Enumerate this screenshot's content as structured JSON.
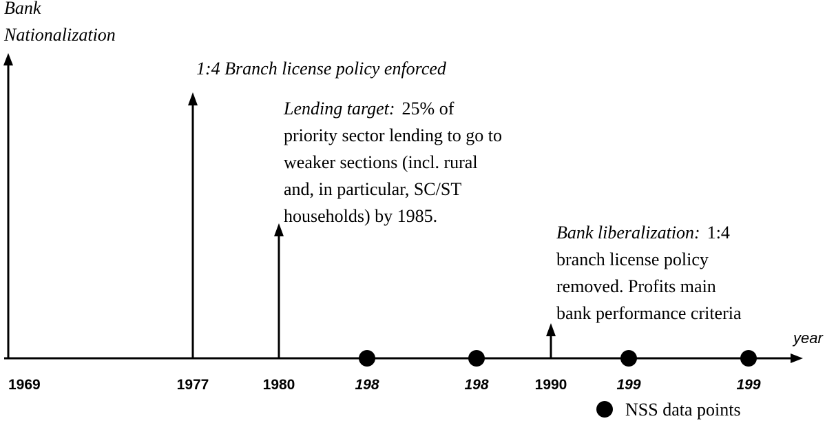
{
  "nationalization": [
    "Bank",
    "Nationalization"
  ],
  "policy_1977": "1:4 Branch license policy enforced",
  "lending_target": {
    "lead": "Lending target:",
    "lines": [
      "25% of",
      "priority sector lending to go to",
      "weaker sections (incl. rural",
      "and, in particular, SC/ST",
      "households) by 1985."
    ]
  },
  "liberalization": {
    "lead": "Bank liberalization:",
    "lines": [
      "1:4",
      "branch license policy",
      "removed. Profits main",
      "bank performance criteria"
    ]
  },
  "axis_label": "year",
  "year_labels": [
    "1969",
    "1977",
    "1980",
    "1990"
  ],
  "nss_labels": [
    "198",
    "198",
    "199",
    "199"
  ],
  "legend": "NSS data points"
}
